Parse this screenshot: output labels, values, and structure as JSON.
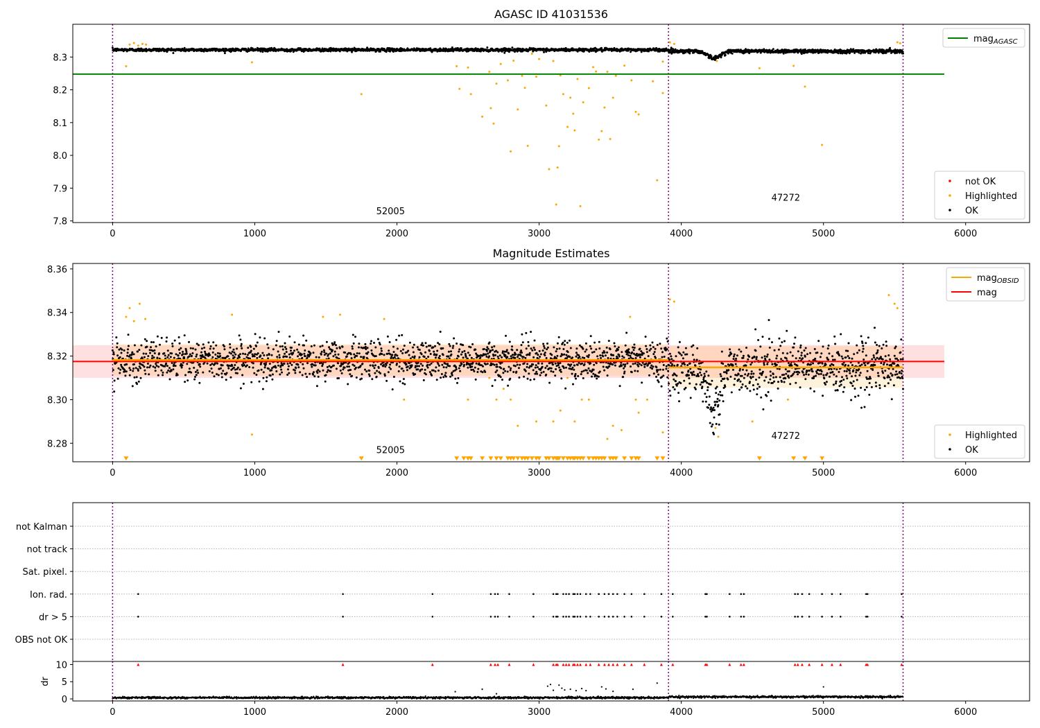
{
  "chart_data": [
    {
      "type": "scatter",
      "title": "AGASC ID 41031536",
      "xlim": [
        -280,
        6450
      ],
      "ylim": [
        7.795,
        8.4
      ],
      "xticks": [
        0,
        1000,
        2000,
        3000,
        4000,
        5000,
        6000
      ],
      "yticks": [
        7.8,
        7.9,
        8.0,
        8.1,
        8.2,
        8.3
      ],
      "xlabel": "",
      "ylabel": "",
      "grid": false,
      "obsid_boundaries": [
        0,
        3910,
        5560
      ],
      "obsid_labels": [
        {
          "text": "52005",
          "x": 1955,
          "y": 7.82
        },
        {
          "text": "47272",
          "x": 4735,
          "y": 7.862
        }
      ],
      "baseline": {
        "label": "mag",
        "subscript": "AGASC",
        "value": 8.248,
        "x_range": [
          -280,
          5850
        ],
        "color": "#008000"
      },
      "segments": [
        {
          "x_start": 0,
          "x_end": 3910,
          "ok_mean": 8.322,
          "ok_spread": 0.004
        },
        {
          "x_start": 3910,
          "x_end": 5560,
          "ok_mean": 8.318,
          "ok_spread": 0.005
        }
      ],
      "dips": [
        {
          "x_center": 4230,
          "width": 60,
          "depth": 0.022
        }
      ],
      "series": [
        {
          "name": "not OK",
          "color": "#ff0000",
          "values": []
        },
        {
          "name": "Highlighted",
          "color": "#ffa500",
          "values": [
            [
              95,
              8.272
            ],
            [
              120,
              8.338
            ],
            [
              150,
              8.343
            ],
            [
              180,
              8.335
            ],
            [
              210,
              8.34
            ],
            [
              235,
              8.338
            ],
            [
              980,
              8.284
            ],
            [
              1750,
              8.187
            ],
            [
              2420,
              8.272
            ],
            [
              2440,
              8.203
            ],
            [
              2500,
              8.268
            ],
            [
              2520,
              8.187
            ],
            [
              2600,
              8.118
            ],
            [
              2650,
              8.255
            ],
            [
              2660,
              8.144
            ],
            [
              2680,
              8.097
            ],
            [
              2700,
              8.219
            ],
            [
              2730,
              8.279
            ],
            [
              2780,
              8.229
            ],
            [
              2800,
              8.012
            ],
            [
              2820,
              8.289
            ],
            [
              2850,
              8.14
            ],
            [
              2880,
              8.243
            ],
            [
              2900,
              8.206
            ],
            [
              2920,
              8.029
            ],
            [
              2950,
              8.31
            ],
            [
              2980,
              8.24
            ],
            [
              3000,
              8.294
            ],
            [
              3050,
              8.152
            ],
            [
              3070,
              7.958
            ],
            [
              3100,
              8.288
            ],
            [
              3120,
              7.85
            ],
            [
              3130,
              7.963
            ],
            [
              3140,
              8.028
            ],
            [
              3150,
              8.244
            ],
            [
              3170,
              8.187
            ],
            [
              3200,
              8.087
            ],
            [
              3220,
              8.176
            ],
            [
              3240,
              8.127
            ],
            [
              3250,
              8.076
            ],
            [
              3270,
              8.233
            ],
            [
              3290,
              7.845
            ],
            [
              3310,
              8.162
            ],
            [
              3350,
              8.205
            ],
            [
              3380,
              8.269
            ],
            [
              3400,
              8.256
            ],
            [
              3420,
              8.048
            ],
            [
              3440,
              8.074
            ],
            [
              3460,
              8.146
            ],
            [
              3480,
              8.255
            ],
            [
              3500,
              8.05
            ],
            [
              3520,
              8.176
            ],
            [
              3540,
              8.243
            ],
            [
              3600,
              8.274
            ],
            [
              3650,
              8.229
            ],
            [
              3680,
              8.133
            ],
            [
              3700,
              8.125
            ],
            [
              3800,
              8.226
            ],
            [
              3830,
              7.924
            ],
            [
              3870,
              8.19
            ],
            [
              3870,
              8.286
            ],
            [
              3920,
              8.345
            ],
            [
              3950,
              8.34
            ],
            [
              4250,
              8.288
            ],
            [
              4550,
              8.266
            ],
            [
              4790,
              8.273
            ],
            [
              4870,
              8.21
            ],
            [
              4990,
              8.032
            ],
            [
              5520,
              8.345
            ],
            [
              5540,
              8.342
            ]
          ]
        },
        {
          "name": "OK",
          "color": "#000000",
          "values": []
        }
      ],
      "legend": [
        {
          "label": "mag",
          "subscript": "AGASC",
          "kind": "line",
          "color": "#008000",
          "location": "upper-right"
        },
        {
          "label": "not OK",
          "kind": "marker",
          "color": "#ff0000",
          "location": "lower-right"
        },
        {
          "label": "Highlighted",
          "kind": "marker",
          "color": "#ffa500",
          "location": "lower-right"
        },
        {
          "label": "OK",
          "kind": "marker",
          "color": "#000000",
          "location": "lower-right"
        }
      ]
    },
    {
      "type": "scatter",
      "title": "Magnitude Estimates",
      "xlim": [
        -280,
        6450
      ],
      "ylim": [
        8.2715,
        8.3625
      ],
      "xticks": [
        0,
        1000,
        2000,
        3000,
        4000,
        5000,
        6000
      ],
      "yticks": [
        8.28,
        8.3,
        8.32,
        8.34,
        8.36
      ],
      "xlabel": "",
      "ylabel": "",
      "grid": false,
      "obsid_boundaries": [
        0,
        3910,
        5560
      ],
      "obsid_labels": [
        {
          "text": "52005",
          "x": 1955,
          "y": 8.2755
        },
        {
          "text": "47272",
          "x": 4735,
          "y": 8.282
        }
      ],
      "mag": {
        "label": "mag",
        "value": 8.3175,
        "band": [
          8.31,
          8.325
        ],
        "x_range": [
          -280,
          5850
        ],
        "color": "#ff0000"
      },
      "mag_obsid": [
        {
          "label": "mag",
          "subscript": "OBSID",
          "x_start": 0,
          "x_end": 3910,
          "value": 8.3182,
          "band": [
            8.311,
            8.3255
          ],
          "color": "#ffa500"
        },
        {
          "label": "mag",
          "subscript": "OBSID",
          "x_start": 3910,
          "x_end": 5560,
          "value": 8.3148,
          "band": [
            8.3055,
            8.3245
          ],
          "color": "#ffa500"
        }
      ],
      "segments": [
        {
          "x_start": 0,
          "x_end": 3910,
          "ok_mean": 8.3182,
          "ok_spread": 0.0045
        },
        {
          "x_start": 3910,
          "x_end": 5560,
          "ok_mean": 8.3148,
          "ok_spread": 0.006
        }
      ],
      "dips": [
        {
          "x_center": 4230,
          "width": 60,
          "depth": 0.02
        }
      ],
      "clip_marker_y": 8.273,
      "series": [
        {
          "name": "Highlighted",
          "color": "#ffa500",
          "values": [
            [
              95,
              8.338
            ],
            [
              120,
              8.342
            ],
            [
              150,
              8.336
            ],
            [
              190,
              8.344
            ],
            [
              230,
              8.337
            ],
            [
              840,
              8.339
            ],
            [
              980,
              8.284
            ],
            [
              1480,
              8.338
            ],
            [
              1600,
              8.339
            ],
            [
              1910,
              8.337
            ],
            [
              2050,
              8.3
            ],
            [
              2500,
              8.3
            ],
            [
              2650,
              8.31
            ],
            [
              2700,
              8.3
            ],
            [
              2750,
              8.305
            ],
            [
              2800,
              8.3
            ],
            [
              2850,
              8.288
            ],
            [
              2980,
              8.29
            ],
            [
              3100,
              8.29
            ],
            [
              3150,
              8.295
            ],
            [
              3200,
              8.31
            ],
            [
              3250,
              8.29
            ],
            [
              3300,
              8.3
            ],
            [
              3350,
              8.3
            ],
            [
              3480,
              8.282
            ],
            [
              3520,
              8.288
            ],
            [
              3580,
              8.286
            ],
            [
              3640,
              8.338
            ],
            [
              3680,
              8.3
            ],
            [
              3700,
              8.294
            ],
            [
              3760,
              8.3
            ],
            [
              3870,
              8.285
            ],
            [
              3920,
              8.346
            ],
            [
              3950,
              8.345
            ],
            [
              4240,
              8.287
            ],
            [
              4260,
              8.283
            ],
            [
              4500,
              8.29
            ],
            [
              4750,
              8.3
            ],
            [
              5460,
              8.348
            ],
            [
              5500,
              8.344
            ],
            [
              5520,
              8.342
            ]
          ]
        },
        {
          "name": "Highlighted (clipped)",
          "color": "#ffa500",
          "values": [
            [
              95
            ],
            [
              1750
            ],
            [
              2420
            ],
            [
              2470
            ],
            [
              2500
            ],
            [
              2520
            ],
            [
              2600
            ],
            [
              2660
            ],
            [
              2700
            ],
            [
              2730
            ],
            [
              2780
            ],
            [
              2800
            ],
            [
              2820
            ],
            [
              2850
            ],
            [
              2880
            ],
            [
              2900
            ],
            [
              2920
            ],
            [
              2950
            ],
            [
              2980
            ],
            [
              3000
            ],
            [
              3050
            ],
            [
              3070
            ],
            [
              3100
            ],
            [
              3120
            ],
            [
              3130
            ],
            [
              3140
            ],
            [
              3170
            ],
            [
              3200
            ],
            [
              3220
            ],
            [
              3240
            ],
            [
              3250
            ],
            [
              3270
            ],
            [
              3290
            ],
            [
              3310
            ],
            [
              3350
            ],
            [
              3380
            ],
            [
              3400
            ],
            [
              3420
            ],
            [
              3440
            ],
            [
              3460
            ],
            [
              3500
            ],
            [
              3520
            ],
            [
              3540
            ],
            [
              3600
            ],
            [
              3650
            ],
            [
              3680
            ],
            [
              3700
            ],
            [
              3830
            ],
            [
              3870
            ],
            [
              4550
            ],
            [
              4790
            ],
            [
              4870
            ],
            [
              4990
            ]
          ]
        },
        {
          "name": "OK",
          "color": "#000000",
          "values": []
        }
      ],
      "legend": [
        {
          "label": "mag",
          "subscript": "OBSID",
          "kind": "line",
          "color": "#ffa500",
          "location": "upper-right"
        },
        {
          "label": "mag",
          "kind": "line",
          "color": "#ff0000",
          "location": "upper-right"
        },
        {
          "label": "Highlighted",
          "kind": "marker",
          "color": "#ffa500",
          "location": "lower-right"
        },
        {
          "label": "OK",
          "kind": "marker",
          "color": "#000000",
          "location": "lower-right"
        }
      ]
    },
    {
      "type": "scatter",
      "title": "",
      "xlim": [
        -280,
        6450
      ],
      "xticks": [
        0,
        1000,
        2000,
        3000,
        4000,
        5000,
        6000
      ],
      "obsid_boundaries": [
        0,
        3910,
        5560
      ],
      "flag_rows": [
        "not Kalman",
        "not track",
        "Sat. pixel.",
        "Ion. rad.",
        "dr > 5",
        "OBS not OK"
      ],
      "flags": {
        "Ion. rad.": [
          180,
          1620,
          2250,
          2660,
          2690,
          2710,
          2790,
          2960,
          3100,
          3120,
          3130,
          3170,
          3190,
          3210,
          3240,
          3250,
          3270,
          3290,
          3330,
          3360,
          3420,
          3460,
          3490,
          3520,
          3550,
          3600,
          3650,
          3740,
          3860,
          3940,
          4170,
          4180,
          4340,
          4420,
          4440,
          4800,
          4820,
          4850,
          4900,
          4990,
          5060,
          5120,
          5300,
          5310,
          5550
        ],
        "dr > 5": [
          180,
          1620,
          2250,
          2660,
          2690,
          2710,
          2790,
          2960,
          3100,
          3120,
          3130,
          3170,
          3190,
          3210,
          3240,
          3250,
          3270,
          3290,
          3330,
          3360,
          3420,
          3460,
          3490,
          3520,
          3550,
          3600,
          3650,
          3740,
          3860,
          3940,
          4170,
          4180,
          4340,
          4420,
          4440,
          4800,
          4820,
          4850,
          4900,
          4990,
          5060,
          5120,
          5300,
          5310,
          5550
        ]
      },
      "dr": {
        "ylabel": "dr",
        "ylim": [
          -0.6,
          10.9
        ],
        "yticks": [
          0,
          5,
          10
        ],
        "cap": 10,
        "series_ok_color": "#000000",
        "series_capped_color": "#ff0000",
        "outliers": [
          [
            2410,
            2.1
          ],
          [
            2600,
            2.8
          ],
          [
            2700,
            1.5
          ],
          [
            3060,
            3.7
          ],
          [
            3080,
            4.2
          ],
          [
            3100,
            2.5
          ],
          [
            3140,
            4.0
          ],
          [
            3160,
            3.1
          ],
          [
            3180,
            2.6
          ],
          [
            3220,
            2.8
          ],
          [
            3260,
            2.4
          ],
          [
            3300,
            3.0
          ],
          [
            3330,
            2.4
          ],
          [
            3440,
            3.5
          ],
          [
            3470,
            2.9
          ],
          [
            3520,
            2.2
          ],
          [
            3660,
            2.8
          ],
          [
            3830,
            4.6
          ],
          [
            5000,
            3.5
          ]
        ]
      }
    }
  ]
}
